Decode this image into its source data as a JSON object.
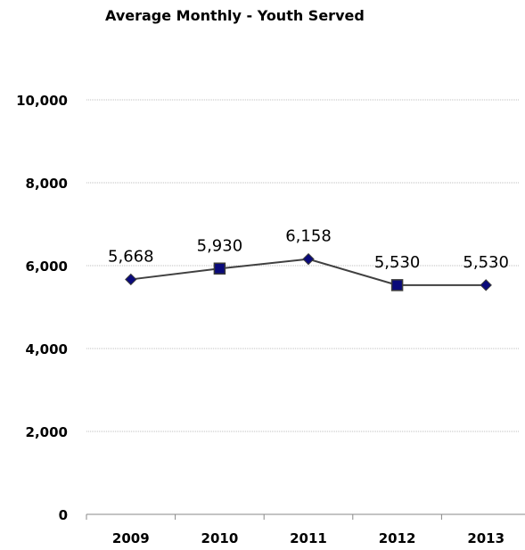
{
  "chart_data": {
    "type": "line",
    "title": "Average Monthly - Youth Served",
    "xlabel": "",
    "ylabel": "",
    "categories": [
      "2009",
      "2010",
      "2011",
      "2012",
      "2013"
    ],
    "series": [
      {
        "values": [
          5668,
          5930,
          6158,
          5530,
          5530
        ],
        "markers": [
          "diamond",
          "square",
          "diamond",
          "square",
          "diamond"
        ]
      }
    ],
    "data_labels": [
      "5,668",
      "5,930",
      "6,158",
      "5,530",
      "5,530"
    ],
    "ylim": [
      0,
      11000
    ],
    "yticks": [
      0,
      2000,
      4000,
      6000,
      8000,
      10000
    ],
    "ytick_labels": [
      "0",
      "2,000",
      "4,000",
      "6,000",
      "8,000",
      "10,000"
    ],
    "grid": true,
    "legend": "none",
    "colors": {
      "line": "#404040",
      "marker_fill": "#0a0a7a",
      "marker_stroke": "#3a3a3a",
      "grid": "#bfbfbf",
      "axis": "#888888"
    }
  }
}
